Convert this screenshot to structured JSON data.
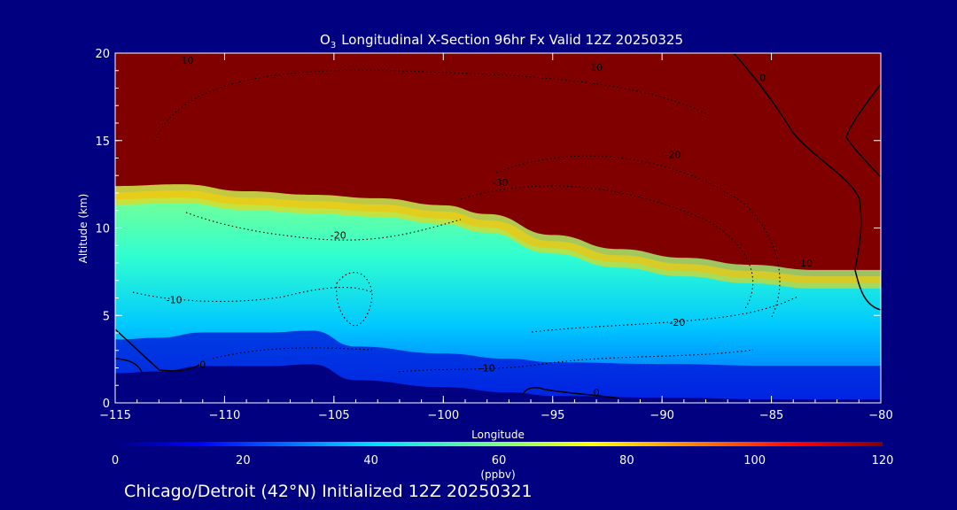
{
  "chart_data": {
    "type": "heatmap",
    "title_main": "Longitudinal X-Section 96hr  Fx Valid 12Z 20250325",
    "title_species": "O",
    "title_subscript": "3",
    "xlabel": "Longitude",
    "ylabel": "Altitude (km)",
    "xlim": [
      -115,
      -80
    ],
    "ylim": [
      0,
      20
    ],
    "xticks": [
      {
        "value": -115,
        "label": "−115"
      },
      {
        "value": -110,
        "label": "−110"
      },
      {
        "value": -105,
        "label": "−105"
      },
      {
        "value": -100,
        "label": "−100"
      },
      {
        "value": -95,
        "label": "−95"
      },
      {
        "value": -90,
        "label": "−90"
      },
      {
        "value": -85,
        "label": "−85"
      },
      {
        "value": -80,
        "label": "−80"
      }
    ],
    "yticks": [
      {
        "value": 0,
        "label": "0"
      },
      {
        "value": 5,
        "label": "5"
      },
      {
        "value": 10,
        "label": "10"
      },
      {
        "value": 15,
        "label": "15"
      },
      {
        "value": 20,
        "label": "20"
      }
    ],
    "colorbar": {
      "range": [
        0,
        120
      ],
      "unit": "(ppbv)",
      "ticks": [
        {
          "value": 0,
          "label": "0"
        },
        {
          "value": 20,
          "label": "20"
        },
        {
          "value": 40,
          "label": "40"
        },
        {
          "value": 60,
          "label": "60"
        },
        {
          "value": 80,
          "label": "80"
        },
        {
          "value": 100,
          "label": "100"
        },
        {
          "value": 120,
          "label": "120"
        }
      ]
    },
    "tropopause_km": [
      {
        "lon": -115,
        "alt": 12.4
      },
      {
        "lon": -112,
        "alt": 12.5
      },
      {
        "lon": -109,
        "alt": 12.1
      },
      {
        "lon": -106,
        "alt": 11.9
      },
      {
        "lon": -103,
        "alt": 11.7
      },
      {
        "lon": -100,
        "alt": 11.3
      },
      {
        "lon": -98,
        "alt": 10.8
      },
      {
        "lon": -95,
        "alt": 9.6
      },
      {
        "lon": -92,
        "alt": 8.8
      },
      {
        "lon": -89,
        "alt": 8.3
      },
      {
        "lon": -86,
        "alt": 7.9
      },
      {
        "lon": -83,
        "alt": 7.6
      },
      {
        "lon": -80,
        "alt": 7.6
      }
    ],
    "terrain_km": [
      {
        "lon": -115,
        "alt": 1.7
      },
      {
        "lon": -113,
        "alt": 1.8
      },
      {
        "lon": -111,
        "alt": 2.1
      },
      {
        "lon": -108,
        "alt": 2.1
      },
      {
        "lon": -106,
        "alt": 2.2
      },
      {
        "lon": -104,
        "alt": 1.3
      },
      {
        "lon": -100,
        "alt": 0.9
      },
      {
        "lon": -97,
        "alt": 0.6
      },
      {
        "lon": -95,
        "alt": 0.4
      },
      {
        "lon": -90,
        "alt": 0.3
      },
      {
        "lon": -85,
        "alt": 0.2
      },
      {
        "lon": -80,
        "alt": 0.2
      }
    ],
    "contour_labels": [
      {
        "lon": -111.7,
        "alt": 19.4,
        "text": "10"
      },
      {
        "lon": -93,
        "alt": 19.0,
        "text": "10"
      },
      {
        "lon": -89.5,
        "alt": 14.0,
        "text": "-20"
      },
      {
        "lon": -97.4,
        "alt": 12.4,
        "text": "-30"
      },
      {
        "lon": -104.8,
        "alt": 9.4,
        "text": "-20"
      },
      {
        "lon": -112.3,
        "alt": 5.7,
        "text": "-10"
      },
      {
        "lon": -89.3,
        "alt": 4.4,
        "text": "-20"
      },
      {
        "lon": -98.0,
        "alt": 1.8,
        "text": "-10"
      },
      {
        "lon": -111.0,
        "alt": 2.0,
        "text": "0"
      },
      {
        "lon": -93.0,
        "alt": 0.4,
        "text": "0"
      },
      {
        "lon": -83.4,
        "alt": 7.8,
        "text": "10"
      },
      {
        "lon": -85.4,
        "alt": 18.4,
        "text": "0"
      }
    ]
  },
  "footer": {
    "caption": "Chicago/Detroit (42°N) Initialized 12Z 20250321"
  },
  "colors": {
    "background": "#000080",
    "text": "#ffffff",
    "stratosphere": "#800000"
  }
}
